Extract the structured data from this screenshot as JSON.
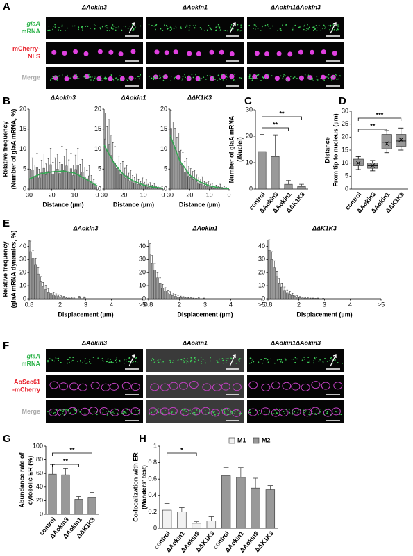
{
  "figure": {
    "panel_labels": [
      "A",
      "B",
      "C",
      "D",
      "E",
      "F",
      "G",
      "H"
    ],
    "A": {
      "columns": [
        "ΔAokin3",
        "ΔAokin1",
        "ΔAokin1ΔAokin3"
      ],
      "rows": [
        [
          "glaA",
          "mRNA"
        ],
        [
          "mCherry-",
          "NLS"
        ],
        [
          "Merge"
        ]
      ],
      "row_colors": [
        "#2db34a",
        "#e8202a",
        "#aaaaaa"
      ]
    },
    "F": {
      "columns": [
        "ΔAokin3",
        "ΔAokin1",
        "ΔAokin1ΔAokin3"
      ],
      "rows": [
        [
          "glaA",
          "mRNA"
        ],
        [
          "AoSec61",
          "-mCherry"
        ],
        [
          "Merge"
        ]
      ],
      "row_colors": [
        "#2db34a",
        "#e8202a",
        "#aaaaaa"
      ]
    }
  },
  "chart_data": [
    {
      "type": "histogram",
      "title": "ΔAokin3",
      "xlabel": "Distance (µm)",
      "ylabel": [
        "Relative frequency",
        "(Number of glaA mRNA, %)"
      ],
      "bins": [
        30,
        29,
        28,
        27,
        26,
        25,
        24,
        23,
        22,
        21,
        20,
        19,
        18,
        17,
        16,
        15,
        14,
        13,
        12,
        11,
        10,
        9,
        8,
        7,
        6,
        5,
        4,
        3,
        2,
        1,
        0
      ],
      "values": [
        2.5,
        4.8,
        3.2,
        5.5,
        2.8,
        4.1,
        5.2,
        3.6,
        4.4,
        6.1,
        3.8,
        4.5,
        5.0,
        3.9,
        6.2,
        4.7,
        5.8,
        4.2,
        5.1,
        3.4,
        4.9,
        6.0,
        3.5,
        4.3,
        3.1,
        2.6,
        3.3,
        1.8,
        1.2,
        0.6
      ],
      "errors": [
        2.5,
        3.0,
        2.8,
        3.5,
        2.2,
        3.1,
        3.6,
        2.7,
        3.2,
        4.1,
        2.9,
        3.3,
        3.7,
        2.8,
        4.5,
        3.5,
        4.0,
        3.1,
        3.8,
        2.6,
        3.6,
        4.2,
        2.7,
        3.1,
        2.4,
        2.0,
        2.6,
        1.6,
        1.2,
        0.8
      ],
      "fit_x": [
        30,
        25,
        20,
        15,
        10,
        5,
        0
      ],
      "fit_values": [
        2.5,
        3.8,
        4.3,
        4.5,
        4.0,
        2.5,
        0.8
      ],
      "fit_color": "#33a652",
      "color": "#999999",
      "xlim": [
        30,
        0
      ],
      "xticks": [
        30,
        20,
        10,
        0
      ],
      "ylim": [
        0,
        20
      ],
      "yticks": [
        0,
        5,
        10,
        15,
        20
      ]
    },
    {
      "type": "histogram",
      "title": "ΔAokin1",
      "xlabel": "Distance (µm)",
      "bins": [
        30,
        29,
        28,
        27,
        26,
        25,
        24,
        23,
        22,
        21,
        20,
        19,
        18,
        17,
        16,
        15,
        14,
        13,
        12,
        11,
        10,
        9,
        8,
        7,
        6,
        5,
        4,
        3,
        2,
        1,
        0
      ],
      "values": [
        12.5,
        9.8,
        11.2,
        8.4,
        7.1,
        6.5,
        5.2,
        4.8,
        3.6,
        3.9,
        2.8,
        3.3,
        2.1,
        2.5,
        1.8,
        1.5,
        2.0,
        1.2,
        0.9,
        1.4,
        0.8,
        1.1,
        0.5,
        0.7,
        0.4,
        0.6,
        0.2,
        0.3,
        0.1,
        0.2
      ],
      "errors": [
        6.5,
        5.8,
        6.2,
        5.0,
        4.5,
        4.2,
        3.6,
        3.4,
        2.8,
        3.0,
        2.4,
        2.6,
        1.9,
        2.1,
        1.6,
        1.4,
        1.8,
        1.2,
        1.0,
        1.4,
        0.9,
        1.2,
        0.7,
        0.9,
        0.6,
        0.8,
        0.4,
        0.5,
        0.3,
        0.4
      ],
      "fit_x": [
        30,
        25,
        20,
        15,
        10,
        5,
        0
      ],
      "fit_values": [
        11.0,
        6.5,
        3.5,
        2.0,
        1.0,
        0.5,
        0.2
      ],
      "fit_color": "#33a652",
      "color": "#999999",
      "xlim": [
        30,
        0
      ],
      "xticks": [
        30,
        20,
        10,
        0
      ],
      "ylim": [
        0,
        20
      ],
      "yticks": [
        0,
        5,
        10,
        15,
        20
      ]
    },
    {
      "type": "histogram",
      "title": "ΔΔK1K3",
      "xlabel": "Distance (µm)",
      "bins": [
        30,
        29,
        28,
        27,
        26,
        25,
        24,
        23,
        22,
        21,
        20,
        19,
        18,
        17,
        16,
        15,
        14,
        13,
        12,
        11,
        10,
        9,
        8,
        7,
        6,
        5,
        4,
        3,
        2,
        1,
        0
      ],
      "values": [
        15.2,
        11.8,
        10.4,
        8.8,
        9.5,
        6.2,
        5.8,
        4.1,
        4.6,
        3.2,
        2.9,
        2.4,
        2.6,
        1.8,
        1.5,
        1.2,
        1.6,
        0.9,
        0.7,
        0.8,
        0.5,
        0.6,
        0.3,
        0.4,
        0.2,
        0.5,
        0.1,
        0.2,
        0.1,
        0.0
      ],
      "errors": [
        4.5,
        5.0,
        4.8,
        4.2,
        4.5,
        3.5,
        3.3,
        2.8,
        3.0,
        2.4,
        2.2,
        2.0,
        2.1,
        1.7,
        1.5,
        1.3,
        1.5,
        1.0,
        0.9,
        1.0,
        0.7,
        0.8,
        0.5,
        0.6,
        0.4,
        0.7,
        0.3,
        0.4,
        0.3,
        0.2
      ],
      "fit_x": [
        30,
        25,
        20,
        15,
        10,
        5,
        0
      ],
      "fit_values": [
        13.5,
        7.0,
        3.5,
        1.8,
        0.8,
        0.3,
        0.1
      ],
      "fit_color": "#33a652",
      "color": "#999999",
      "xlim": [
        30,
        0
      ],
      "xticks": [
        30,
        20,
        10,
        0
      ],
      "ylim": [
        0,
        20
      ],
      "yticks": [
        0,
        5,
        10,
        15,
        20
      ]
    },
    {
      "type": "bar",
      "ylabel": [
        "Number of glaA mRNA",
        "(/Nuclei)"
      ],
      "categories": [
        "control",
        "ΔAokin3",
        "ΔAokin1",
        "ΔΔK1K3"
      ],
      "values": [
        14.2,
        12.3,
        1.8,
        1.0
      ],
      "errors": [
        6.5,
        8.2,
        1.5,
        0.8
      ],
      "color": "#999999",
      "ylim": [
        0,
        30
      ],
      "yticks": [
        0,
        10,
        20,
        30
      ],
      "annotations": [
        {
          "text": "**",
          "pair": [
            "control",
            "ΔAokin1"
          ]
        },
        {
          "text": "**",
          "pair": [
            "control",
            "ΔΔK1K3"
          ]
        }
      ]
    },
    {
      "type": "box",
      "ylabel": [
        "Distance",
        "From tip to nucleus (µm)"
      ],
      "categories": [
        "control",
        "ΔAokin3",
        "ΔAokin1",
        "ΔΔK1K3"
      ],
      "boxes": [
        {
          "min": 7.5,
          "q1": 9,
          "median": 10,
          "q3": 11.5,
          "max": 12.5,
          "mean": 10
        },
        {
          "min": 7,
          "q1": 8,
          "median": 9,
          "q3": 10,
          "max": 11,
          "mean": 9
        },
        {
          "min": 14,
          "q1": 15.5,
          "median": 18,
          "q3": 21,
          "max": 22.5,
          "mean": 17.5
        },
        {
          "min": 15,
          "q1": 16.5,
          "median": 18.5,
          "q3": 21,
          "max": 23.5,
          "mean": 19
        }
      ],
      "color": "#999999",
      "ylim": [
        0,
        30
      ],
      "yticks": [
        0,
        5,
        10,
        15,
        20,
        25,
        30
      ],
      "annotations": [
        {
          "text": "**",
          "pair": [
            "control",
            "ΔAokin1"
          ]
        },
        {
          "text": "***",
          "pair": [
            "control",
            "ΔΔK1K3"
          ]
        }
      ]
    },
    {
      "type": "histogram",
      "title": "ΔAokin3",
      "xlabel": "Displacement (µm)",
      "ylabel": [
        "Relative frequency",
        "(glaA mRNA dynamics, %)"
      ],
      "bins": [
        0.8,
        0.9,
        1.0,
        1.1,
        1.2,
        1.3,
        1.4,
        1.5,
        1.6,
        1.7,
        1.8,
        1.9,
        2.0,
        2.1,
        2.2,
        2.3,
        2.4,
        2.5,
        2.6,
        2.7,
        2.8,
        2.9,
        3.0
      ],
      "values": [
        36,
        31,
        26,
        19,
        13,
        9.5,
        7.2,
        5.1,
        4.0,
        3.1,
        2.2,
        1.6,
        1.2,
        0.8,
        0.6,
        0.4,
        0.3,
        0.2,
        0,
        1.0,
        0,
        0.8
      ],
      "errors": [
        8,
        6,
        5,
        5,
        4,
        3,
        3,
        2.5,
        2,
        2,
        1.5,
        1.5,
        1,
        1,
        0.8,
        0.6,
        0.5,
        0.4,
        0,
        0.8,
        0,
        0.7
      ],
      "color": "#999999",
      "xlim": [
        0.8,
        5.2
      ],
      "xticks": [
        0.8,
        2,
        3,
        4,
        {
          "value": 5.2,
          "label": ">5"
        }
      ],
      "ylim": [
        0,
        45
      ],
      "yticks": [
        0,
        10,
        20,
        30,
        40
      ]
    },
    {
      "type": "histogram",
      "title": "ΔAokin1",
      "xlabel": "Displacement (µm)",
      "bins": [
        0.8,
        0.9,
        1.0,
        1.1,
        1.2,
        1.3,
        1.4,
        1.5,
        1.6,
        1.7,
        1.8,
        1.9,
        2.0,
        2.1,
        2.2,
        2.3,
        2.4,
        2.5,
        2.6,
        2.7,
        2.8,
        2.9,
        3.0
      ],
      "values": [
        34,
        27,
        22,
        16,
        12,
        8,
        6,
        4.5,
        3.4,
        2.6,
        1.9,
        1.4,
        1.0,
        0.8,
        0.5,
        0.4,
        0.3,
        0.2,
        0.1,
        0.3,
        0,
        0.2
      ],
      "errors": [
        8,
        6,
        5,
        4,
        4,
        3,
        2.5,
        2,
        2,
        2,
        1.5,
        1.2,
        1,
        0.8,
        0.6,
        0.5,
        0.4,
        0.3,
        0.2,
        0.4,
        0,
        0.3
      ],
      "color": "#999999",
      "xlim": [
        0.8,
        5.2
      ],
      "xticks": [
        0.8,
        2,
        3,
        4,
        {
          "value": 5.2,
          "label": ">5"
        }
      ],
      "ylim": [
        0,
        45
      ],
      "yticks": [
        0,
        10,
        20,
        30,
        40
      ]
    },
    {
      "type": "histogram",
      "title": "ΔΔK1K3",
      "xlabel": "Displacement (µm)",
      "bins": [
        0.8,
        0.9,
        1.0,
        1.1,
        1.2,
        1.3,
        1.4,
        1.5,
        1.6,
        1.7,
        1.8,
        1.9,
        2.0,
        2.1,
        2.2,
        2.3,
        2.4,
        2.5,
        2.6,
        2.7,
        2.8,
        2.9,
        3.0
      ],
      "values": [
        37,
        30,
        24,
        17,
        12,
        9,
        6.5,
        4.8,
        3.5,
        2.5,
        1.8,
        1.3,
        0.9,
        0.6,
        0.4,
        0.3,
        0.2,
        0.2,
        0.1,
        0.2,
        0,
        0.1
      ],
      "errors": [
        8,
        6,
        5,
        4,
        3.5,
        3,
        2.5,
        2,
        2,
        1.5,
        1.2,
        1,
        0.8,
        0.6,
        0.5,
        0.4,
        0.3,
        0.3,
        0.2,
        0.3,
        0,
        0.2
      ],
      "color": "#999999",
      "xlim": [
        0.8,
        5.2
      ],
      "xticks": [
        0.8,
        2,
        3,
        4,
        {
          "value": 5.2,
          "label": ">5"
        }
      ],
      "ylim": [
        0,
        45
      ],
      "yticks": [
        0,
        10,
        20,
        30,
        40
      ]
    },
    {
      "type": "bar",
      "ylabel": [
        "Abundance rate of",
        "cytosolic ER (%)"
      ],
      "categories": [
        "control",
        "ΔAokin3",
        "ΔAokin1",
        "ΔΔK1K3"
      ],
      "values": [
        59,
        58,
        22,
        25
      ],
      "errors": [
        14,
        9,
        4,
        7
      ],
      "color": "#999999",
      "ylim": [
        0,
        100
      ],
      "yticks": [
        0,
        20,
        40,
        60,
        80,
        100
      ],
      "annotations": [
        {
          "text": "**",
          "pair": [
            "control",
            "ΔAokin1"
          ]
        },
        {
          "text": "**",
          "pair": [
            "control",
            "ΔΔK1K3"
          ]
        }
      ]
    },
    {
      "type": "bar",
      "ylabel": [
        "Co-localization with ER",
        "(Manders' test)"
      ],
      "categories": [
        "control",
        "ΔAokin1",
        "ΔAokin3",
        "ΔΔK1K3",
        "control",
        "ΔAokin1",
        "ΔAokin3",
        "ΔΔK1K3"
      ],
      "series": [
        {
          "name": "M1",
          "color": "#f2f2f2",
          "values": [
            0.22,
            0.2,
            0.06,
            0.09,
            null,
            null,
            null,
            null
          ],
          "errors": [
            0.08,
            0.05,
            0.02,
            0.05,
            null,
            null,
            null,
            null
          ]
        },
        {
          "name": "M2",
          "color": "#999999",
          "values": [
            null,
            null,
            null,
            null,
            0.64,
            0.62,
            0.49,
            0.47
          ],
          "errors": [
            null,
            null,
            null,
            null,
            0.1,
            0.12,
            0.12,
            0.05
          ]
        }
      ],
      "legend": "top-right",
      "ylim": [
        0,
        1
      ],
      "yticks": [
        0,
        0.2,
        0.4,
        0.6,
        0.8,
        1
      ],
      "annotations": [
        {
          "text": "*",
          "pair": [
            "control",
            "ΔAokin3"
          ]
        }
      ]
    }
  ]
}
